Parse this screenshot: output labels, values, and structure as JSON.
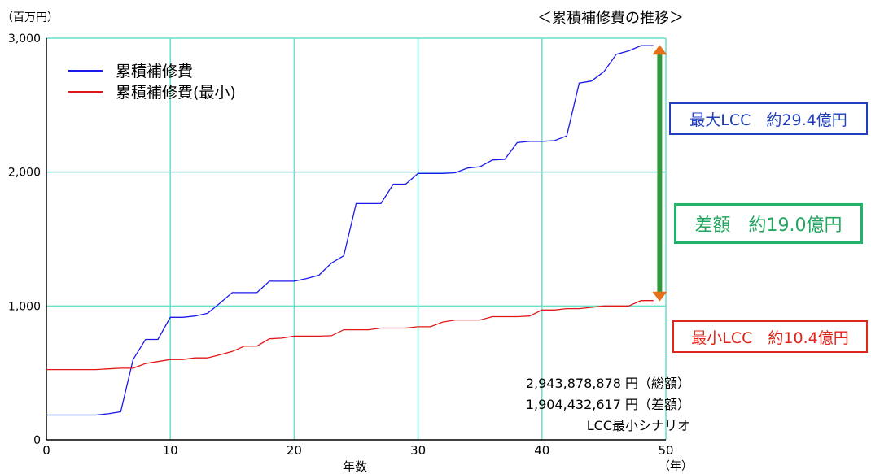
{
  "chart_data": {
    "type": "line",
    "title": "＜累積補修費の推移＞",
    "y_unit_label": "（百万円）",
    "x_label": "年数",
    "x_unit_label": "（年）",
    "xlim": [
      0,
      50
    ],
    "ylim": [
      0,
      3000
    ],
    "x_ticks": [
      0,
      10,
      20,
      30,
      40,
      50
    ],
    "y_ticks": [
      0,
      1000,
      2000,
      3000
    ],
    "y_tick_labels": [
      "0",
      "1,000",
      "2,000",
      "3,000"
    ],
    "grid": true,
    "grid_color": "#66e0c8",
    "legend_position": "top-left",
    "series": [
      {
        "name": "累積補修費",
        "color": "#1a1aee",
        "points": [
          [
            0,
            185
          ],
          [
            1,
            185
          ],
          [
            2,
            185
          ],
          [
            3,
            185
          ],
          [
            4,
            185
          ],
          [
            5,
            195
          ],
          [
            6,
            210
          ],
          [
            7,
            600
          ],
          [
            8,
            750
          ],
          [
            9,
            750
          ],
          [
            10,
            915
          ],
          [
            11,
            915
          ],
          [
            12,
            925
          ],
          [
            13,
            945
          ],
          [
            14,
            1020
          ],
          [
            15,
            1100
          ],
          [
            16,
            1100
          ],
          [
            17,
            1100
          ],
          [
            18,
            1185
          ],
          [
            19,
            1185
          ],
          [
            20,
            1185
          ],
          [
            21,
            1205
          ],
          [
            22,
            1230
          ],
          [
            23,
            1320
          ],
          [
            24,
            1375
          ],
          [
            25,
            1765
          ],
          [
            26,
            1765
          ],
          [
            27,
            1765
          ],
          [
            28,
            1910
          ],
          [
            29,
            1910
          ],
          [
            30,
            1990
          ],
          [
            31,
            1990
          ],
          [
            32,
            1990
          ],
          [
            33,
            1995
          ],
          [
            34,
            2030
          ],
          [
            35,
            2040
          ],
          [
            36,
            2090
          ],
          [
            37,
            2095
          ],
          [
            38,
            2220
          ],
          [
            39,
            2230
          ],
          [
            40,
            2230
          ],
          [
            41,
            2235
          ],
          [
            42,
            2270
          ],
          [
            43,
            2665
          ],
          [
            44,
            2680
          ],
          [
            45,
            2750
          ],
          [
            46,
            2880
          ],
          [
            47,
            2905
          ],
          [
            48,
            2944
          ],
          [
            49,
            2944
          ]
        ]
      },
      {
        "name": "累積補修費(最小)",
        "color": "#e01818",
        "points": [
          [
            0,
            525
          ],
          [
            1,
            525
          ],
          [
            2,
            525
          ],
          [
            3,
            525
          ],
          [
            4,
            525
          ],
          [
            5,
            530
          ],
          [
            6,
            535
          ],
          [
            7,
            535
          ],
          [
            8,
            570
          ],
          [
            9,
            585
          ],
          [
            10,
            600
          ],
          [
            11,
            600
          ],
          [
            12,
            612
          ],
          [
            13,
            612
          ],
          [
            14,
            635
          ],
          [
            15,
            660
          ],
          [
            16,
            700
          ],
          [
            17,
            700
          ],
          [
            18,
            755
          ],
          [
            19,
            760
          ],
          [
            20,
            775
          ],
          [
            21,
            775
          ],
          [
            22,
            775
          ],
          [
            23,
            778
          ],
          [
            24,
            822
          ],
          [
            25,
            822
          ],
          [
            26,
            822
          ],
          [
            27,
            835
          ],
          [
            28,
            835
          ],
          [
            29,
            835
          ],
          [
            30,
            845
          ],
          [
            31,
            845
          ],
          [
            32,
            880
          ],
          [
            33,
            895
          ],
          [
            34,
            895
          ],
          [
            35,
            895
          ],
          [
            36,
            920
          ],
          [
            37,
            920
          ],
          [
            38,
            920
          ],
          [
            39,
            925
          ],
          [
            40,
            970
          ],
          [
            41,
            970
          ],
          [
            42,
            980
          ],
          [
            43,
            980
          ],
          [
            44,
            990
          ],
          [
            45,
            1000
          ],
          [
            46,
            1000
          ],
          [
            47,
            1000
          ],
          [
            48,
            1040
          ],
          [
            49,
            1040
          ]
        ]
      }
    ],
    "annotations": {
      "max_lcc": "最大LCC　約29.4億円",
      "diff": "差額　約19.0億円",
      "min_lcc": "最小LCC　約10.4億円",
      "arrow_x": 49.5,
      "arrow_from": 2944,
      "arrow_to": 1040,
      "arrow_color": "#2e9a3a",
      "arrow_head_color": "#e8701a"
    },
    "totals": {
      "total": "2,943,878,878 円（総額）",
      "difference": "1,904,432,617 円（差額）",
      "scenario": "LCC最小シナリオ"
    }
  }
}
